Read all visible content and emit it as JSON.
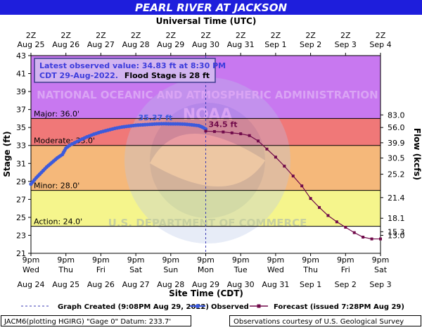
{
  "title": "PEARL RIVER AT JACKSON",
  "top_axis_label": "Universal Time (UTC)",
  "bottom_axis_label": "Site Time (CDT)",
  "left_axis_label": "Stage (ft)",
  "right_axis_label": "Flow (kcfs)",
  "colors": {
    "title_bg": "#1e1edc",
    "title_text": "#ffffff",
    "major": "#c878f0",
    "moderate": "#f07878",
    "minor": "#f5b87a",
    "action": "#f5f58c",
    "normal": "#ffffff",
    "observed": "#3c5adc",
    "forecast": "#700a4a",
    "flood_line": "#000000",
    "annotation_box_bg": "#d2b4f0",
    "annotation_box_border": "#3c3c8c"
  },
  "info_box": {
    "line1": "Latest observed value: 34.83 ft at 8:30 PM",
    "line2_blue": "CDT 29-Aug-2022.",
    "line2_black": "Flood Stage is 28 ft"
  },
  "watermark_text": {
    "top": "NATIONAL OCEANIC AND ATMOSPHERIC ADMINISTRATION",
    "bottom": "U.S. DEPARTMENT OF COMMERCE",
    "center": "NOAA"
  },
  "footer": {
    "left": "JACM6(plotting HGIRG) \"Gage 0\" Datum: 233.7'",
    "right": "Observations courtesy of U.S. Geological Survey"
  },
  "legend": {
    "graph_created": "Graph Created (9:08PM Aug 29, 2022)",
    "observed": "Observed",
    "forecast": "Forecast (issued 7:28PM Aug 29)"
  },
  "chart_data": {
    "type": "line",
    "title": "PEARL RIVER AT JACKSON",
    "xlabel": "Site Time (CDT)",
    "ylabel": "Stage (ft)",
    "y2label": "Flow (kcfs)",
    "ylim": [
      21,
      43
    ],
    "xlim": [
      "2022-08-24 21:00",
      "2022-09-03 21:00"
    ],
    "x_unit_note": "times in CDT",
    "grid": false,
    "y_ticks": [
      "21",
      "23",
      "25",
      "27",
      "29",
      "31",
      "33",
      "35",
      "37",
      "39",
      "41",
      "43"
    ],
    "y2_ticks": [
      {
        "stage": 23,
        "label": "13.0"
      },
      {
        "stage": 23.4,
        "label": "15.3"
      },
      {
        "stage": 24.9,
        "label": "18.1"
      },
      {
        "stage": 27.2,
        "label": "21.4"
      },
      {
        "stage": 29.8,
        "label": "25.2"
      },
      {
        "stage": 31.6,
        "label": "30.5"
      },
      {
        "stage": 33.3,
        "label": "39.9"
      },
      {
        "stage": 35.0,
        "label": "56.0"
      },
      {
        "stage": 36.4,
        "label": "83.0"
      }
    ],
    "x_ticks_bottom": [
      {
        "day": 0,
        "t": "9pm",
        "d": "Wed",
        "date": "Aug 24"
      },
      {
        "day": 1,
        "t": "9pm",
        "d": "Thu",
        "date": "Aug 25"
      },
      {
        "day": 2,
        "t": "9pm",
        "d": "Fri",
        "date": "Aug 26"
      },
      {
        "day": 3,
        "t": "9pm",
        "d": "Sat",
        "date": "Aug 27"
      },
      {
        "day": 4,
        "t": "9pm",
        "d": "Sun",
        "date": "Aug 28"
      },
      {
        "day": 5,
        "t": "9pm",
        "d": "Mon",
        "date": "Aug 29"
      },
      {
        "day": 6,
        "t": "9pm",
        "d": "Tue",
        "date": "Aug 30"
      },
      {
        "day": 7,
        "t": "9pm",
        "d": "Wed",
        "date": "Aug 31"
      },
      {
        "day": 8,
        "t": "9pm",
        "d": "Thu",
        "date": "Sep 1"
      },
      {
        "day": 9,
        "t": "9pm",
        "d": "Fri",
        "date": "Sep 2"
      },
      {
        "day": 10,
        "t": "9pm",
        "d": "Sat",
        "date": "Sep 3"
      }
    ],
    "x_ticks_top": [
      {
        "day": 0,
        "t": "2Z",
        "date": "Aug 25"
      },
      {
        "day": 1,
        "t": "2Z",
        "date": "Aug 26"
      },
      {
        "day": 2,
        "t": "2Z",
        "date": "Aug 27"
      },
      {
        "day": 3,
        "t": "2Z",
        "date": "Aug 28"
      },
      {
        "day": 4,
        "t": "2Z",
        "date": "Aug 29"
      },
      {
        "day": 5,
        "t": "2Z",
        "date": "Aug 30"
      },
      {
        "day": 6,
        "t": "2Z",
        "date": "Aug 31"
      },
      {
        "day": 7,
        "t": "2Z",
        "date": "Sep 1"
      },
      {
        "day": 8,
        "t": "2Z",
        "date": "Sep 2"
      },
      {
        "day": 9,
        "t": "2Z",
        "date": "Sep 3"
      },
      {
        "day": 10,
        "t": "2Z",
        "date": "Sep 4"
      }
    ],
    "flood_categories": [
      {
        "name": "Major",
        "label": "Major: 36.0'",
        "from": 36,
        "to": 43,
        "color_key": "major"
      },
      {
        "name": "Moderate",
        "label": "Moderate: 33.0'",
        "from": 33,
        "to": 36,
        "color_key": "moderate"
      },
      {
        "name": "Minor",
        "label": "Minor: 28.0'",
        "from": 28,
        "to": 33,
        "color_key": "minor"
      },
      {
        "name": "Action",
        "label": "Action: 24.0'",
        "from": 24,
        "to": 28,
        "color_key": "action"
      },
      {
        "name": "Normal",
        "label": "",
        "from": 21,
        "to": 24,
        "color_key": "normal"
      }
    ],
    "graph_created_day": 5.0,
    "series": [
      {
        "name": "Observed",
        "x_days": [
          0.0,
          0.15,
          0.3,
          0.45,
          0.6,
          0.75,
          0.9,
          1.0,
          1.1,
          1.25,
          1.4,
          1.6,
          1.8,
          2.0,
          2.2,
          2.4,
          2.6,
          2.8,
          3.0,
          3.2,
          3.4,
          3.6,
          3.8,
          4.0,
          4.2,
          4.4,
          4.6,
          4.8,
          4.9,
          5.0
        ],
        "stage": [
          28.7,
          29.4,
          30.0,
          30.6,
          31.1,
          31.6,
          32.0,
          32.7,
          33.0,
          33.3,
          33.6,
          33.95,
          34.25,
          34.5,
          34.7,
          34.9,
          35.05,
          35.15,
          35.25,
          35.3,
          35.35,
          35.4,
          35.42,
          35.4,
          35.4,
          35.37,
          35.3,
          35.2,
          35.05,
          34.83
        ]
      },
      {
        "name": "Forecast",
        "x_days": [
          5.0,
          5.25,
          5.5,
          5.75,
          6.0,
          6.25,
          6.5,
          6.75,
          7.0,
          7.25,
          7.5,
          7.75,
          8.0,
          8.25,
          8.5,
          8.75,
          9.0,
          9.25,
          9.5,
          9.75,
          10.0
        ],
        "stage": [
          34.6,
          34.55,
          34.5,
          34.4,
          34.3,
          34.1,
          33.5,
          32.6,
          31.7,
          30.7,
          29.6,
          28.5,
          27.1,
          26.1,
          25.2,
          24.5,
          23.9,
          23.3,
          22.8,
          22.6,
          22.6
        ]
      }
    ],
    "annotations": [
      {
        "text": "35.37 ft",
        "series": "Observed"
      },
      {
        "text": "34.5 ft",
        "series": "Forecast"
      }
    ]
  }
}
